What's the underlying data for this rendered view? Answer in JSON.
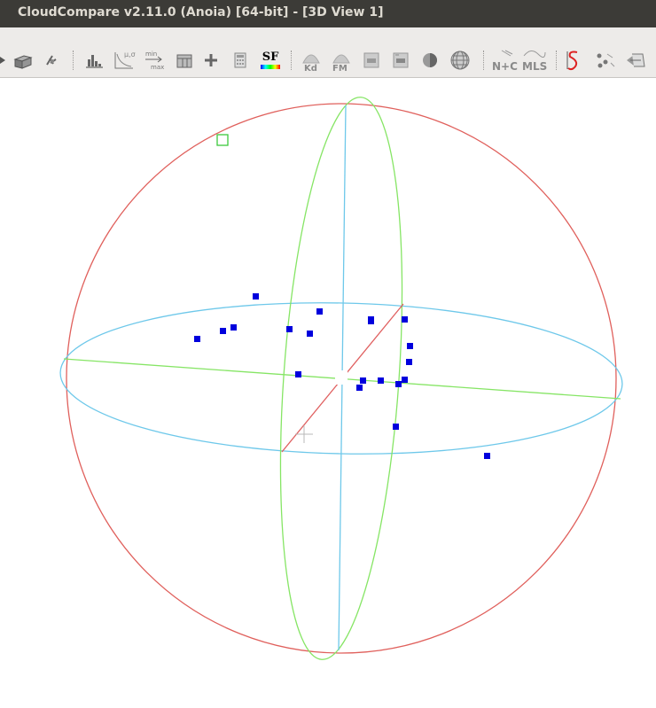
{
  "window": {
    "title": "CloudCompare v2.11.0 (Anoia) [64-bit] - [3D View 1]"
  },
  "toolbar": {
    "icons": [
      {
        "name": "arrow-partial-icon"
      },
      {
        "name": "box-icon"
      },
      {
        "name": "sensor-icon"
      },
      {
        "name": "histogram-icon"
      },
      {
        "name": "distribution-fit-icon"
      },
      {
        "name": "filter-by-value-icon"
      },
      {
        "name": "sf-arithmetic-icon"
      },
      {
        "name": "add-sf-icon"
      },
      {
        "name": "calculator-icon"
      },
      {
        "name": "sf-color-scale-icon",
        "label": "SF"
      },
      {
        "name": "kd-tree-icon",
        "label": "Kd"
      },
      {
        "name": "facet-fm-icon",
        "label": "FM"
      },
      {
        "name": "point-list-icon"
      },
      {
        "name": "point-list-2-icon"
      },
      {
        "name": "sphere-shading-icon"
      },
      {
        "name": "globe-icon"
      },
      {
        "name": "normals-curvature-icon",
        "label": "N+C"
      },
      {
        "name": "mls-icon",
        "label": "MLS"
      },
      {
        "name": "segmentation-s-icon"
      },
      {
        "name": "cloud-cluster-icon"
      },
      {
        "name": "register-icon"
      }
    ]
  },
  "view": {
    "colors": {
      "red_circle": "#e0605c",
      "green_line": "#86e565",
      "blue_line": "#6ec8ea",
      "points": "#0000dd",
      "selection": "#3cc83c",
      "red_diag": "#e06060"
    },
    "cursor_icon": "crosshair-cursor-icon",
    "selection_icon": "selection-square-icon"
  }
}
